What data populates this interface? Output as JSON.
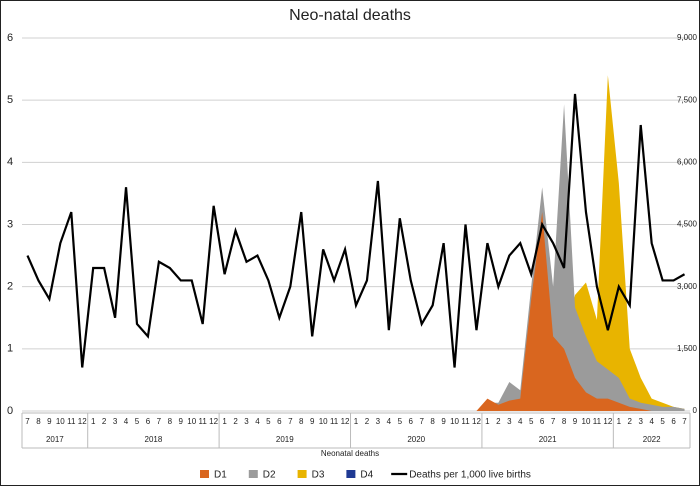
{
  "chart_data": {
    "type": "area_line",
    "title": "Neo-natal deaths",
    "x_label": "Neonatal deaths",
    "categories": [
      "7",
      "8",
      "9",
      "10",
      "11",
      "12",
      "1",
      "2",
      "3",
      "4",
      "5",
      "6",
      "7",
      "8",
      "9",
      "10",
      "11",
      "12",
      "1",
      "2",
      "3",
      "4",
      "5",
      "6",
      "7",
      "8",
      "9",
      "10",
      "11",
      "12",
      "1",
      "2",
      "3",
      "4",
      "5",
      "6",
      "7",
      "8",
      "9",
      "10",
      "11",
      "12",
      "1",
      "2",
      "3",
      "4",
      "5",
      "6",
      "7",
      "8",
      "9",
      "10",
      "11",
      "12",
      "1",
      "2",
      "3",
      "4",
      "5",
      "6",
      "7"
    ],
    "x_groups": [
      {
        "label": "2017",
        "count": 6
      },
      {
        "label": "2018",
        "count": 12
      },
      {
        "label": "2019",
        "count": 12
      },
      {
        "label": "2020",
        "count": 12
      },
      {
        "label": "2021",
        "count": 12
      },
      {
        "label": "2022",
        "count": 7
      }
    ],
    "ylim": [
      0,
      6
    ],
    "yticks": [
      0,
      1,
      2,
      3,
      4,
      5,
      6
    ],
    "y2lim": [
      0,
      9000
    ],
    "y2ticks": [
      0,
      {
        "value": 1500,
        "label": "1,500"
      },
      {
        "value": 3000,
        "label": "3,000"
      },
      {
        "value": 4500,
        "label": "4,500"
      },
      {
        "value": 6000,
        "label": "6,000"
      },
      {
        "value": 7500,
        "label": "7,500"
      },
      {
        "value": 9000,
        "label": "9,000"
      }
    ],
    "grid": true,
    "legend": "bottom",
    "series": [
      {
        "name": "D1",
        "type": "area",
        "axis": "y2",
        "color": "#d9661f",
        "values": [
          0,
          0,
          0,
          0,
          0,
          0,
          0,
          0,
          0,
          0,
          0,
          0,
          0,
          0,
          0,
          0,
          0,
          0,
          0,
          0,
          0,
          0,
          0,
          0,
          0,
          0,
          0,
          0,
          0,
          0,
          0,
          0,
          0,
          0,
          0,
          0,
          0,
          0,
          0,
          0,
          0,
          0,
          300,
          150,
          250,
          300,
          2700,
          4800,
          1800,
          1500,
          800,
          450,
          300,
          300,
          200,
          100,
          50,
          0,
          0,
          0,
          0
        ]
      },
      {
        "name": "D2",
        "type": "area",
        "axis": "y2",
        "color": "#9b9b9b",
        "values": [
          0,
          0,
          0,
          0,
          0,
          0,
          0,
          0,
          0,
          0,
          0,
          0,
          0,
          0,
          0,
          0,
          0,
          0,
          0,
          0,
          0,
          0,
          0,
          0,
          0,
          0,
          0,
          0,
          0,
          0,
          0,
          0,
          0,
          0,
          0,
          0,
          0,
          0,
          0,
          0,
          0,
          0,
          200,
          200,
          700,
          500,
          3000,
          5400,
          3000,
          7400,
          2500,
          1800,
          1200,
          1000,
          800,
          300,
          200,
          150,
          100,
          100,
          50
        ]
      },
      {
        "name": "D3",
        "type": "area",
        "axis": "y2",
        "color": "#e8b400",
        "values": [
          0,
          0,
          0,
          0,
          0,
          0,
          0,
          0,
          0,
          0,
          0,
          0,
          0,
          0,
          0,
          0,
          0,
          0,
          0,
          0,
          0,
          0,
          0,
          0,
          0,
          0,
          0,
          0,
          0,
          0,
          0,
          0,
          0,
          0,
          0,
          0,
          0,
          0,
          0,
          0,
          0,
          0,
          0,
          0,
          0,
          0,
          0,
          0,
          0,
          1500,
          2800,
          3100,
          2200,
          8100,
          5500,
          1500,
          800,
          300,
          200,
          100,
          50
        ]
      },
      {
        "name": "D4",
        "type": "area",
        "axis": "y2",
        "color": "#1f3a93",
        "values": [
          0,
          0,
          0,
          0,
          0,
          0,
          0,
          0,
          0,
          0,
          0,
          0,
          0,
          0,
          0,
          0,
          0,
          0,
          0,
          0,
          0,
          0,
          0,
          0,
          0,
          0,
          0,
          0,
          0,
          0,
          0,
          0,
          0,
          0,
          0,
          0,
          0,
          0,
          0,
          0,
          0,
          0,
          0,
          0,
          0,
          0,
          0,
          0,
          0,
          0,
          0,
          0,
          0,
          0,
          0,
          0,
          0,
          0,
          0,
          0,
          0
        ]
      },
      {
        "name": "Deaths per 1,000 live births",
        "type": "line",
        "color": "#000000",
        "values": [
          2.5,
          2.1,
          1.8,
          2.7,
          3.2,
          0.7,
          2.3,
          2.3,
          1.5,
          3.6,
          1.4,
          1.2,
          2.4,
          2.3,
          2.1,
          2.1,
          1.4,
          3.3,
          2.2,
          2.9,
          2.4,
          2.5,
          2.1,
          1.5,
          2.0,
          3.2,
          1.2,
          2.6,
          2.1,
          2.6,
          1.7,
          2.1,
          3.7,
          1.3,
          3.1,
          2.1,
          1.4,
          1.7,
          2.7,
          0.7,
          3.0,
          1.3,
          2.7,
          2.0,
          2.5,
          2.7,
          2.2,
          3.0,
          2.7,
          2.3,
          5.1,
          3.2,
          2.0,
          1.3,
          2.0,
          1.7,
          4.6,
          2.7,
          2.1,
          2.1,
          2.2
        ]
      }
    ]
  }
}
